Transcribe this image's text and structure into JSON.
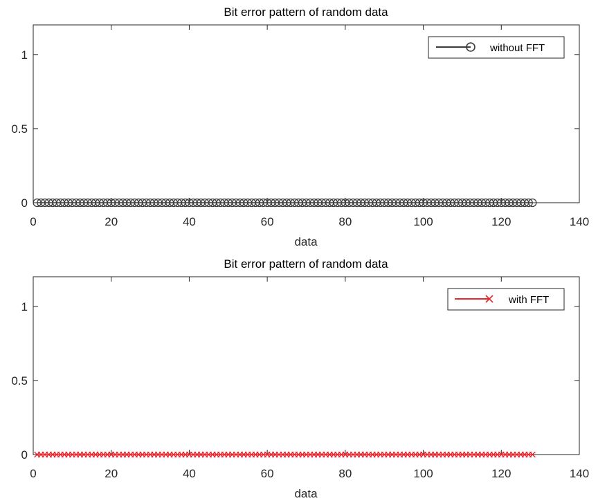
{
  "colors": {
    "background": "#ffffff",
    "axes": "#262626",
    "series_without_fft": "#3c3c3c",
    "series_with_fft": "#e8262e"
  },
  "chart_data": [
    {
      "type": "line",
      "title": "Bit error pattern of random data",
      "xlabel": "data",
      "ylabel": "",
      "xlim": [
        0,
        140
      ],
      "ylim": [
        0,
        1.2
      ],
      "xticks": [
        0,
        20,
        40,
        60,
        80,
        100,
        120,
        140
      ],
      "xtick_labels": [
        "0",
        "20",
        "40",
        "60",
        "80",
        "100",
        "120",
        "140"
      ],
      "yticks": [
        0,
        0.5,
        1
      ],
      "ytick_labels": [
        "0",
        "0.5",
        "1"
      ],
      "grid": false,
      "legend_position": "top-right",
      "series": [
        {
          "name": "without FFT",
          "marker": "circle",
          "color": "#3c3c3c",
          "x_start": 1,
          "x_end": 128,
          "values": [
            0,
            0,
            0,
            0,
            0,
            0,
            0,
            0,
            0,
            0,
            0,
            0,
            0,
            0,
            0,
            0,
            0,
            0,
            0,
            0,
            0,
            0,
            0,
            0,
            0,
            0,
            0,
            0,
            0,
            0,
            0,
            0,
            0,
            0,
            0,
            0,
            0,
            0,
            0,
            0,
            0,
            0,
            0,
            0,
            0,
            0,
            0,
            0,
            0,
            0,
            0,
            0,
            0,
            0,
            0,
            0,
            0,
            0,
            0,
            0,
            0,
            0,
            0,
            0,
            0,
            0,
            0,
            0,
            0,
            0,
            0,
            0,
            0,
            0,
            0,
            0,
            0,
            0,
            0,
            0,
            0,
            0,
            0,
            0,
            0,
            0,
            0,
            0,
            0,
            0,
            0,
            0,
            0,
            0,
            0,
            0,
            0,
            0,
            0,
            0,
            0,
            0,
            0,
            0,
            0,
            0,
            0,
            0,
            0,
            0,
            0,
            0,
            0,
            0,
            0,
            0,
            0,
            0,
            0,
            0,
            0,
            0,
            0,
            0,
            0,
            0,
            0,
            0
          ]
        }
      ]
    },
    {
      "type": "line",
      "title": "Bit error pattern of random data",
      "xlabel": "data",
      "ylabel": "",
      "xlim": [
        0,
        140
      ],
      "ylim": [
        0,
        1.2
      ],
      "xticks": [
        0,
        20,
        40,
        60,
        80,
        100,
        120,
        140
      ],
      "xtick_labels": [
        "0",
        "20",
        "40",
        "60",
        "80",
        "100",
        "120",
        "140"
      ],
      "yticks": [
        0,
        0.5,
        1
      ],
      "ytick_labels": [
        "0",
        "0.5",
        "1"
      ],
      "grid": false,
      "legend_position": "top-right",
      "series": [
        {
          "name": "with FFT",
          "marker": "x",
          "color": "#e8262e",
          "x_start": 1,
          "x_end": 128,
          "values": [
            0,
            0,
            0,
            0,
            0,
            0,
            0,
            0,
            0,
            0,
            0,
            0,
            0,
            0,
            0,
            0,
            0,
            0,
            0,
            0,
            0,
            0,
            0,
            0,
            0,
            0,
            0,
            0,
            0,
            0,
            0,
            0,
            0,
            0,
            0,
            0,
            0,
            0,
            0,
            0,
            0,
            0,
            0,
            0,
            0,
            0,
            0,
            0,
            0,
            0,
            0,
            0,
            0,
            0,
            0,
            0,
            0,
            0,
            0,
            0,
            0,
            0,
            0,
            0,
            0,
            0,
            0,
            0,
            0,
            0,
            0,
            0,
            0,
            0,
            0,
            0,
            0,
            0,
            0,
            0,
            0,
            0,
            0,
            0,
            0,
            0,
            0,
            0,
            0,
            0,
            0,
            0,
            0,
            0,
            0,
            0,
            0,
            0,
            0,
            0,
            0,
            0,
            0,
            0,
            0,
            0,
            0,
            0,
            0,
            0,
            0,
            0,
            0,
            0,
            0,
            0,
            0,
            0,
            0,
            0,
            0,
            0,
            0,
            0,
            0,
            0,
            0,
            0
          ]
        }
      ]
    }
  ]
}
